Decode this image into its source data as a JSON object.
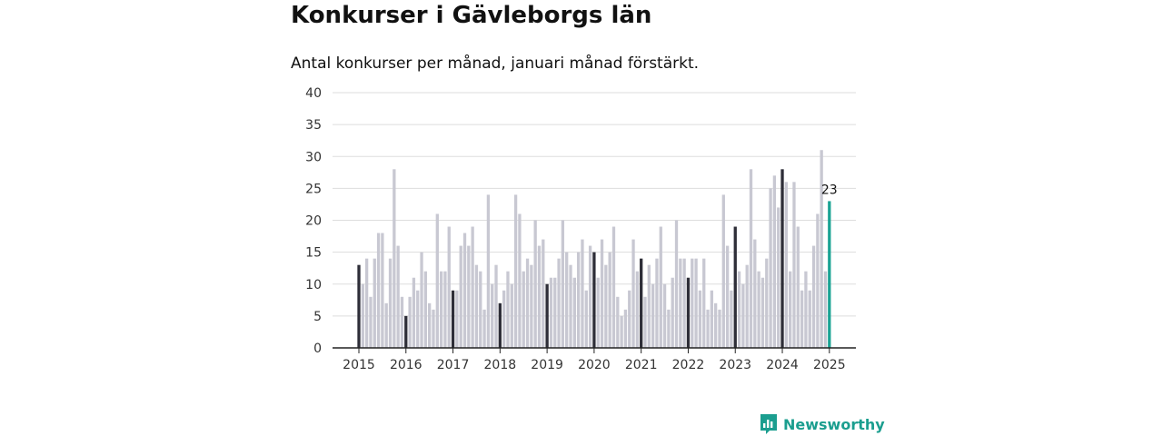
{
  "chart_data": {
    "type": "bar",
    "title": "Konkurser i Gävleborgs län",
    "subtitle": "Antal konkurser per månad, januari månad förstärkt.",
    "xlabel": "",
    "ylabel": "",
    "ylim": [
      0,
      40
    ],
    "yticks": [
      0,
      5,
      10,
      15,
      20,
      25,
      30,
      35,
      40
    ],
    "xticks": [
      "2015",
      "2016",
      "2017",
      "2018",
      "2019",
      "2020",
      "2021",
      "2022",
      "2023",
      "2024",
      "2025"
    ],
    "grid": true,
    "start": "2015-01",
    "values": [
      13,
      10,
      14,
      8,
      14,
      18,
      18,
      7,
      14,
      28,
      16,
      8,
      5,
      8,
      11,
      9,
      15,
      12,
      7,
      6,
      21,
      12,
      12,
      19,
      9,
      9,
      16,
      18,
      16,
      19,
      13,
      12,
      6,
      24,
      10,
      13,
      7,
      9,
      12,
      10,
      24,
      21,
      12,
      14,
      13,
      20,
      16,
      17,
      10,
      11,
      11,
      14,
      20,
      15,
      13,
      11,
      15,
      17,
      9,
      16,
      15,
      11,
      17,
      13,
      15,
      19,
      8,
      5,
      6,
      9,
      17,
      12,
      14,
      8,
      13,
      10,
      14,
      19,
      10,
      6,
      11,
      20,
      14,
      14,
      11,
      14,
      14,
      9,
      14,
      6,
      9,
      7,
      6,
      24,
      16,
      9,
      19,
      12,
      10,
      13,
      28,
      17,
      12,
      11,
      14,
      25,
      27,
      22,
      28,
      26,
      12,
      26,
      19,
      9,
      12,
      9,
      16,
      21,
      31,
      12,
      23
    ],
    "data_labels": [
      {
        "index": 120,
        "text": "23"
      }
    ],
    "colors": {
      "default": "#c8c8d2",
      "january": "#2e2e38",
      "latest": "#1aa394",
      "grid": "#dddddd",
      "axis": "#222222"
    }
  },
  "brand": {
    "name": "Newsworthy",
    "color": "#1b9e8f",
    "icon": "newsworthy-logo-icon"
  }
}
